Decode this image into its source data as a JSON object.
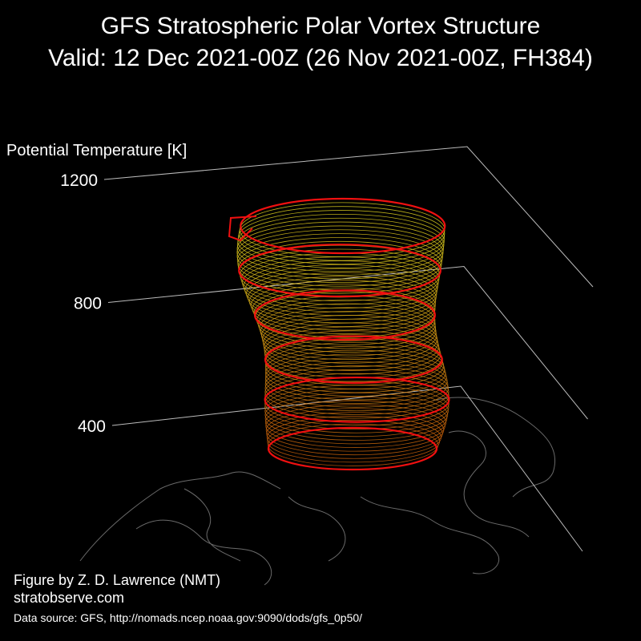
{
  "chart_data": {
    "type": "surface3d",
    "title": "GFS Stratospheric Polar Vortex Structure",
    "subtitle": "Valid: 12 Dec 2021-00Z  (26 Nov 2021-00Z, FH384)",
    "ylabel": "Potential Temperature [K]",
    "ylim": [
      400,
      1200
    ],
    "yticks": [
      400,
      800,
      1200
    ],
    "credit": "Figure by Z. D. Lawrence (NMT)",
    "website": "stratobserve.com",
    "source": "Data source: GFS, http://nomads.ncep.noaa.gov:9090/dods/gfs_0p50/"
  }
}
